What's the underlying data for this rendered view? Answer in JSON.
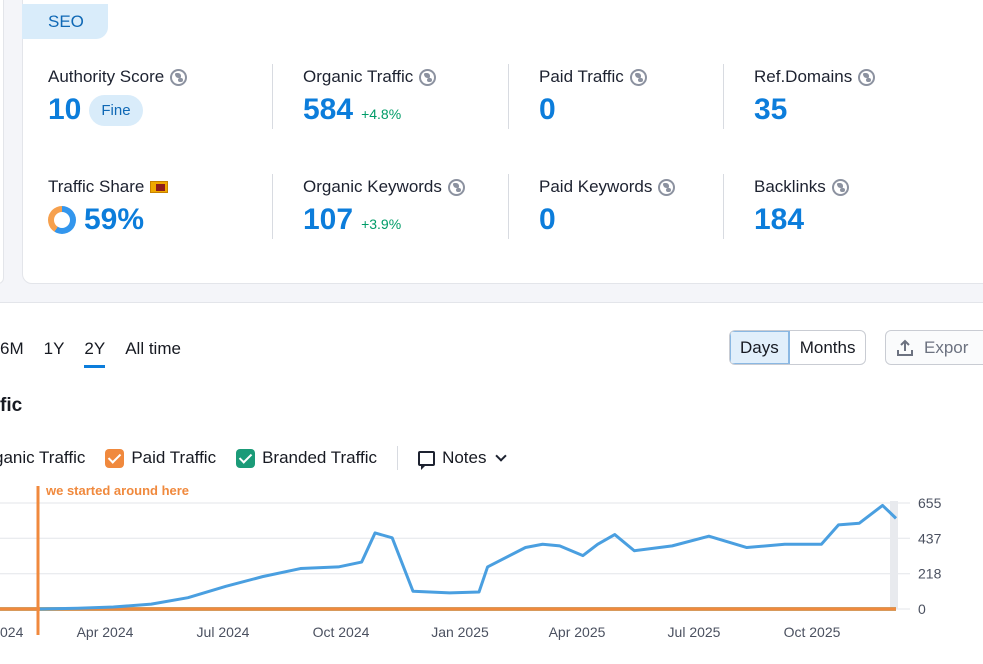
{
  "seo_tab": "SEO",
  "metrics": {
    "authority_score": {
      "label": "Authority Score",
      "value": "10",
      "badge": "Fine"
    },
    "organic_traffic": {
      "label": "Organic Traffic",
      "value": "584",
      "delta": "+4.8%"
    },
    "paid_traffic": {
      "label": "Paid Traffic",
      "value": "0"
    },
    "ref_domains": {
      "label": "Ref.Domains",
      "value": "35"
    },
    "traffic_share": {
      "label": "Traffic Share",
      "value": "59%",
      "flag": "Sri Lanka flag"
    },
    "organic_keywords": {
      "label": "Organic Keywords",
      "value": "107",
      "delta": "+3.9%"
    },
    "paid_keywords": {
      "label": "Paid Keywords",
      "value": "0"
    },
    "backlinks": {
      "label": "Backlinks",
      "value": "184"
    }
  },
  "periods": [
    "6M",
    "1Y",
    "2Y",
    "All time"
  ],
  "active_period": "2Y",
  "granularity": {
    "days": "Days",
    "months": "Months",
    "selected": "Days"
  },
  "export_label": "Expor",
  "section_title": "fic",
  "legend": {
    "organic": "ganic Traffic",
    "paid": "Paid Traffic",
    "branded": "Branded Traffic",
    "notes": "Notes"
  },
  "colors": {
    "organic": "#4a9fe0",
    "paid": "#f0893d",
    "branded": "#1b9b78",
    "accent": "#0c7ddb"
  },
  "chart_data": {
    "type": "line",
    "annotation": "we started around here",
    "x_ticks": [
      "024",
      "Apr 2024",
      "Jul 2024",
      "Oct 2024",
      "Jan 2025",
      "Apr 2025",
      "Jul 2025",
      "Oct 2025"
    ],
    "y_ticks": [
      0,
      218,
      437,
      655
    ],
    "ylim": [
      0,
      655
    ],
    "series": [
      {
        "name": "Organic Traffic",
        "x": [
          "2024-01",
          "2024-02",
          "2024-03",
          "2024-04",
          "2024-05",
          "2024-06",
          "2024-07",
          "2024-08",
          "2024-09",
          "2024-09-20",
          "2024-10-01",
          "2024-10-15",
          "2024-11-01",
          "2024-12-01",
          "2024-12-25",
          "2025-01-01",
          "2025-02-01",
          "2025-02-15",
          "2025-03-01",
          "2025-03-20",
          "2025-04-01",
          "2025-04-15",
          "2025-05-01",
          "2025-06-01",
          "2025-07-01",
          "2025-08-01",
          "2025-09-01",
          "2025-10-01",
          "2025-10-15",
          "2025-11-01",
          "2025-11-20",
          "2025-12-01"
        ],
        "values": [
          0,
          5,
          12,
          30,
          70,
          140,
          200,
          250,
          260,
          290,
          470,
          440,
          110,
          100,
          105,
          260,
          380,
          400,
          390,
          330,
          400,
          460,
          360,
          390,
          450,
          380,
          400,
          400,
          520,
          530,
          640,
          560
        ]
      },
      {
        "name": "Paid Traffic",
        "x": [
          "2024-01",
          "2025-12-01"
        ],
        "values": [
          0,
          0
        ]
      },
      {
        "name": "Branded Traffic",
        "x": [
          "2024-01",
          "2025-12-01"
        ],
        "values": [
          0,
          0
        ]
      }
    ]
  }
}
